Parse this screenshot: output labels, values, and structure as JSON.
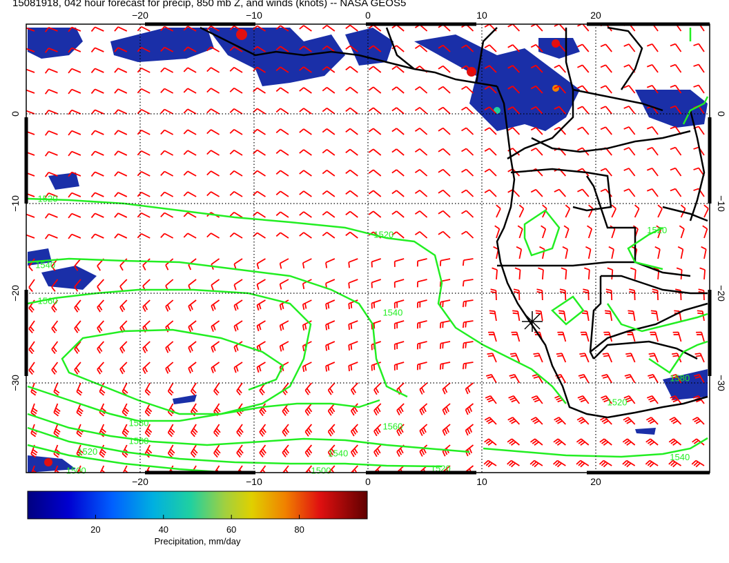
{
  "title": "15081918, 042 hour forecast for precip, 850 mb Z, and winds (knots) -- NASA GEOS5",
  "map": {
    "lon_range": [
      -30,
      30
    ],
    "lat_range": [
      -40,
      10
    ],
    "lon_ticks": [
      {
        "value": -20,
        "label": "−20"
      },
      {
        "value": -10,
        "label": "−10"
      },
      {
        "value": 0,
        "label": "0"
      },
      {
        "value": 10,
        "label": "10"
      },
      {
        "value": 20,
        "label": "20"
      }
    ],
    "lat_ticks": [
      {
        "value": 0,
        "label": "0"
      },
      {
        "value": -10,
        "label": "−10"
      },
      {
        "value": -20,
        "label": "−20"
      },
      {
        "value": -30,
        "label": "−30"
      }
    ],
    "gridlines": "dotted",
    "colors": {
      "wind_barbs": "#ff0000",
      "height_contours": "#22ee22",
      "coastlines": "#000000"
    },
    "height_contours": [
      {
        "level": "1520",
        "label": "1520",
        "label_pos": [
          -29.0,
          -9.8
        ]
      },
      {
        "level": "1520",
        "label": "1520",
        "label_pos": [
          0.5,
          -13.8
        ]
      },
      {
        "level": "1540",
        "label": "1540",
        "label_pos": [
          -29.2,
          -17.2
        ]
      },
      {
        "level": "1560",
        "label": "1560",
        "label_pos": [
          -29.0,
          -21.2
        ]
      },
      {
        "level": "1540",
        "label": "1540",
        "label_pos": [
          1.3,
          -22.5
        ]
      },
      {
        "level": "1580",
        "label": "1580",
        "label_pos": [
          -21.0,
          -34.8
        ]
      },
      {
        "level": "1560",
        "label": "1560",
        "label_pos": [
          -21.0,
          -36.8
        ]
      },
      {
        "level": "1560",
        "label": "1560",
        "label_pos": [
          1.3,
          -35.2
        ]
      },
      {
        "level": "1520",
        "label": "1520",
        "label_pos": [
          -25.5,
          -38.0
        ]
      },
      {
        "level": "1540",
        "label": "1540",
        "label_pos": [
          -3.5,
          -38.2
        ]
      },
      {
        "level": "1500",
        "label": "1500",
        "label_pos": [
          -26.5,
          -40.1
        ]
      },
      {
        "level": "1500",
        "label": "1500",
        "label_pos": [
          -5.0,
          -40.1
        ]
      },
      {
        "level": "1520",
        "label": "1520",
        "label_pos": [
          5.5,
          -39.9
        ]
      },
      {
        "level": "1520",
        "label": "1520",
        "label_pos": [
          21.0,
          -32.5
        ]
      },
      {
        "level": "1520",
        "label": "1520",
        "label_pos": [
          24.5,
          -13.3
        ]
      },
      {
        "level": "1580",
        "label": "1580",
        "label_pos": [
          26.5,
          -29.8
        ]
      },
      {
        "level": "1540",
        "label": "1540",
        "label_pos": [
          26.5,
          -38.6
        ]
      }
    ]
  },
  "colorbar": {
    "label": "Precipitation, mm/day",
    "ticks": [
      "20",
      "40",
      "60",
      "80"
    ],
    "tick_values": [
      20,
      40,
      60,
      80
    ],
    "range": [
      0,
      100
    ]
  }
}
